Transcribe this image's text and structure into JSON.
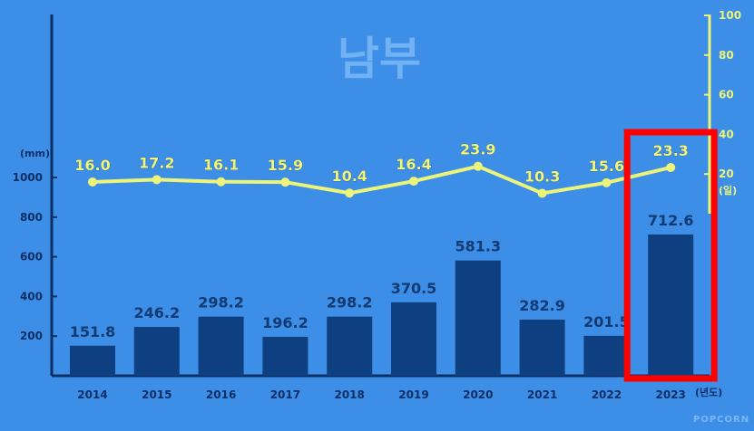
{
  "chart_data": {
    "type": "bar",
    "title": "남부",
    "categories": [
      "2014",
      "2015",
      "2016",
      "2017",
      "2018",
      "2019",
      "2020",
      "2021",
      "2022",
      "2023"
    ],
    "series": [
      {
        "values": [
          151.8,
          246.2,
          298.2,
          196.2,
          298.2,
          370.5,
          581.3,
          282.9,
          201.5,
          712.6
        ],
        "axis": "left",
        "type": "bar",
        "color": "#0e3f80"
      },
      {
        "values": [
          16.0,
          17.2,
          16.1,
          15.9,
          10.4,
          16.4,
          23.9,
          10.3,
          15.6,
          23.3
        ],
        "axis": "right",
        "type": "line",
        "color": "#ecf47a"
      }
    ],
    "left_axis": {
      "unit": "(mm)",
      "ticks": [
        200,
        400,
        600,
        800,
        1000
      ],
      "range": [
        0,
        1000
      ]
    },
    "right_axis": {
      "unit": "(일)",
      "ticks": [
        20,
        40,
        60,
        80,
        100
      ],
      "range": [
        0,
        100
      ]
    },
    "x_unit": "(년도)",
    "highlight_category": "2023",
    "highlight_color": "#ff0000",
    "bar_color": "#0e3f80",
    "line_color": "#ecf47a",
    "watermark": "POPCORN"
  }
}
